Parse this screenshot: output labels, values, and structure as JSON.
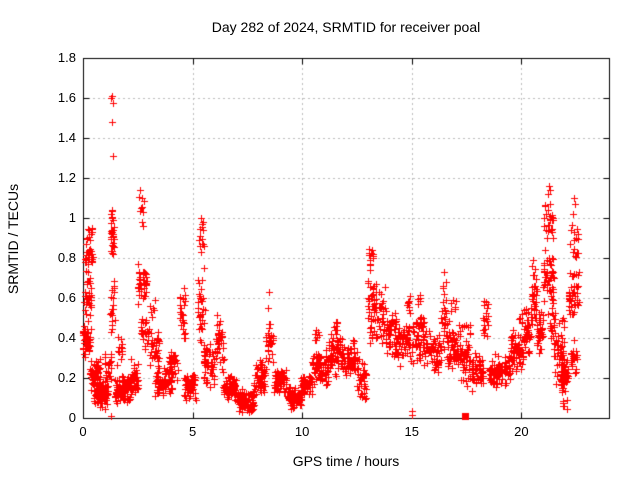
{
  "chart_data": {
    "type": "scatter",
    "title": "Day 282 of 2024, SRMTID for receiver poal",
    "xlabel": "GPS time / hours",
    "ylabel": "SRMTID / TECUs",
    "xlim": [
      0,
      24
    ],
    "ylim": [
      0,
      1.8
    ],
    "xticks": [
      "0",
      "5",
      "10",
      "15",
      "20"
    ],
    "xtick_values": [
      0,
      5,
      10,
      15,
      20
    ],
    "yticks": [
      "0",
      "0.2",
      "0.4",
      "0.6",
      "0.8",
      "1",
      "1.2",
      "1.4",
      "1.6",
      "1.8"
    ],
    "ytick_values": [
      0,
      0.2,
      0.4,
      0.6,
      0.8,
      1.0,
      1.2,
      1.4,
      1.6,
      1.8
    ],
    "grid": true,
    "legend": "none",
    "marker": "plus",
    "marker_color": "#ff0000",
    "grid_color": "#bdbdbd",
    "axis_color": "#000000",
    "background": "#ffffff",
    "clusters": [
      [
        0.0,
        0.35,
        0.28,
        0.5,
        50
      ],
      [
        0.05,
        0.4,
        0.5,
        0.72,
        28
      ],
      [
        0.08,
        0.45,
        0.72,
        0.88,
        30
      ],
      [
        0.15,
        0.45,
        0.88,
        0.97,
        12
      ],
      [
        0.3,
        0.8,
        0.13,
        0.3,
        60
      ],
      [
        0.5,
        1.15,
        0.04,
        0.2,
        90
      ],
      [
        1.0,
        1.3,
        0.15,
        0.35,
        25
      ],
      [
        1.25,
        1.45,
        0.35,
        0.75,
        20
      ],
      [
        1.26,
        1.44,
        0.75,
        1.05,
        28
      ],
      [
        1.45,
        2.2,
        0.07,
        0.22,
        95
      ],
      [
        1.55,
        1.8,
        0.24,
        0.45,
        14
      ],
      [
        2.2,
        2.5,
        0.1,
        0.32,
        28
      ],
      [
        2.5,
        2.9,
        0.55,
        0.8,
        40
      ],
      [
        2.55,
        2.8,
        0.93,
        1.15,
        9
      ],
      [
        2.6,
        3.0,
        0.32,
        0.55,
        22
      ],
      [
        3.0,
        3.5,
        0.22,
        0.48,
        32
      ],
      [
        3.05,
        3.3,
        0.48,
        0.6,
        7
      ],
      [
        3.3,
        4.1,
        0.1,
        0.25,
        75
      ],
      [
        3.9,
        4.35,
        0.18,
        0.35,
        30
      ],
      [
        4.4,
        4.65,
        0.33,
        0.67,
        26
      ],
      [
        4.6,
        5.15,
        0.08,
        0.25,
        55
      ],
      [
        5.25,
        5.55,
        0.32,
        0.78,
        30
      ],
      [
        5.3,
        5.5,
        0.78,
        1.02,
        12
      ],
      [
        5.5,
        6.0,
        0.14,
        0.4,
        48
      ],
      [
        6.0,
        6.45,
        0.22,
        0.52,
        35
      ],
      [
        6.4,
        7.0,
        0.07,
        0.22,
        70
      ],
      [
        7.0,
        7.8,
        0.02,
        0.15,
        95
      ],
      [
        7.8,
        8.35,
        0.1,
        0.3,
        55
      ],
      [
        8.35,
        8.7,
        0.26,
        0.52,
        30
      ],
      [
        8.7,
        9.3,
        0.1,
        0.25,
        55
      ],
      [
        9.3,
        9.95,
        0.04,
        0.16,
        70
      ],
      [
        9.95,
        10.45,
        0.1,
        0.22,
        55
      ],
      [
        10.45,
        11.2,
        0.15,
        0.35,
        75
      ],
      [
        10.55,
        10.75,
        0.35,
        0.46,
        7
      ],
      [
        11.2,
        11.8,
        0.2,
        0.45,
        55
      ],
      [
        11.45,
        11.6,
        0.42,
        0.5,
        6
      ],
      [
        11.8,
        12.5,
        0.2,
        0.4,
        60
      ],
      [
        12.5,
        12.95,
        0.08,
        0.3,
        40
      ],
      [
        13.0,
        13.35,
        0.3,
        0.72,
        40
      ],
      [
        13.05,
        13.3,
        0.72,
        0.85,
        10
      ],
      [
        13.35,
        13.8,
        0.35,
        0.68,
        32
      ],
      [
        13.8,
        14.35,
        0.28,
        0.55,
        55
      ],
      [
        14.35,
        14.95,
        0.25,
        0.5,
        50
      ],
      [
        14.75,
        14.95,
        0.5,
        0.66,
        8
      ],
      [
        15.0,
        15.6,
        0.25,
        0.55,
        55
      ],
      [
        15.2,
        15.4,
        0.55,
        0.63,
        5
      ],
      [
        15.6,
        16.35,
        0.22,
        0.48,
        60
      ],
      [
        16.35,
        16.6,
        0.3,
        0.73,
        28
      ],
      [
        16.6,
        17.2,
        0.22,
        0.5,
        55
      ],
      [
        16.8,
        17.0,
        0.5,
        0.62,
        6
      ],
      [
        17.2,
        17.7,
        0.13,
        0.5,
        45
      ],
      [
        17.7,
        18.25,
        0.13,
        0.35,
        55
      ],
      [
        18.25,
        18.5,
        0.35,
        0.66,
        20
      ],
      [
        18.5,
        19.5,
        0.14,
        0.32,
        95
      ],
      [
        19.5,
        20.1,
        0.22,
        0.45,
        60
      ],
      [
        19.9,
        20.05,
        0.45,
        0.55,
        6
      ],
      [
        20.1,
        20.45,
        0.3,
        0.6,
        40
      ],
      [
        20.45,
        20.7,
        0.45,
        0.79,
        30
      ],
      [
        20.7,
        21.0,
        0.3,
        0.55,
        35
      ],
      [
        21.0,
        21.5,
        0.5,
        0.88,
        48
      ],
      [
        21.05,
        21.45,
        0.88,
        1.1,
        26
      ],
      [
        21.3,
        21.6,
        0.35,
        0.55,
        14
      ],
      [
        21.5,
        21.95,
        0.15,
        0.55,
        45
      ],
      [
        21.8,
        22.15,
        0.1,
        0.33,
        60
      ],
      [
        21.9,
        22.1,
        0.04,
        0.1,
        6
      ],
      [
        22.15,
        22.65,
        0.45,
        0.78,
        42
      ],
      [
        22.2,
        22.6,
        0.78,
        1.0,
        16
      ],
      [
        22.25,
        22.55,
        0.15,
        0.42,
        20
      ]
    ],
    "outlier_points": [
      [
        1.32,
        1.61
      ],
      [
        1.29,
        1.6
      ],
      [
        1.35,
        1.575
      ],
      [
        1.33,
        1.48
      ],
      [
        1.36,
        1.31
      ],
      [
        1.3,
        1.02
      ],
      [
        1.38,
        0.99
      ],
      [
        1.3,
        0.01
      ],
      [
        2.62,
        1.14
      ],
      [
        2.7,
        1.1
      ],
      [
        5.38,
        1.0
      ],
      [
        5.42,
        0.97
      ],
      [
        8.5,
        0.63
      ],
      [
        8.45,
        0.55
      ],
      [
        13.2,
        0.84
      ],
      [
        13.25,
        0.8
      ],
      [
        15.0,
        0.015
      ],
      [
        15.03,
        0.035
      ],
      [
        16.45,
        0.73
      ],
      [
        20.55,
        0.79
      ],
      [
        20.5,
        0.76
      ],
      [
        21.25,
        1.16
      ],
      [
        21.3,
        1.14
      ],
      [
        21.22,
        1.12
      ],
      [
        22.4,
        1.1
      ],
      [
        22.45,
        1.07
      ],
      [
        22.37,
        1.02
      ]
    ],
    "square_points": [
      [
        17.45,
        0.01
      ]
    ]
  }
}
